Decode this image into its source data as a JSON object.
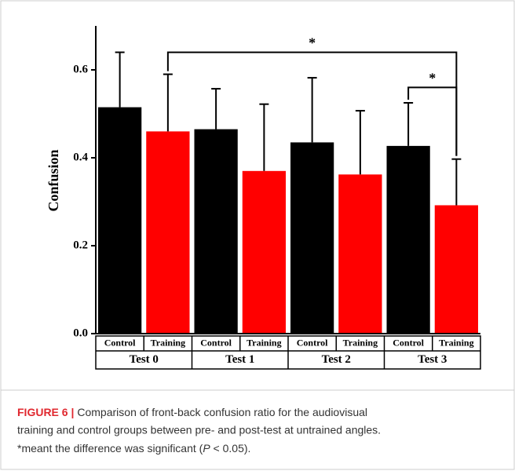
{
  "chart_data": {
    "type": "bar",
    "ylabel": "Confusion",
    "categories": [
      "Test 0",
      "Test 1",
      "Test 2",
      "Test 3"
    ],
    "series": [
      {
        "name": "Control",
        "color": "#000000",
        "values": [
          0.515,
          0.465,
          0.435,
          0.427
        ],
        "errors": [
          0.125,
          0.092,
          0.147,
          0.098
        ]
      },
      {
        "name": "Training",
        "color": "#ff0000",
        "values": [
          0.46,
          0.37,
          0.362,
          0.292
        ],
        "errors": [
          0.13,
          0.152,
          0.145,
          0.105
        ]
      }
    ],
    "ylim": [
      0,
      0.7
    ],
    "yticks": [
      {
        "value": 0,
        "label": "0.0"
      },
      0.2,
      0.4,
      0.6
    ],
    "annotations": [
      {
        "text": "*",
        "y": 0.64,
        "from": [
          0,
          1
        ],
        "to": [
          3,
          1
        ]
      },
      {
        "text": "*",
        "y": 0.56,
        "from": [
          3,
          0
        ],
        "to": [
          3,
          1
        ]
      }
    ]
  },
  "caption": {
    "label": "FIGURE 6 |",
    "line1": "Comparison of front-back confusion ratio for the audiovisual",
    "line2": "training and control groups between pre- and post-test at untrained angles.",
    "line3_before": "*meant the difference was significant (",
    "line3_italic": "P",
    "line3_after": " < 0.05)."
  }
}
